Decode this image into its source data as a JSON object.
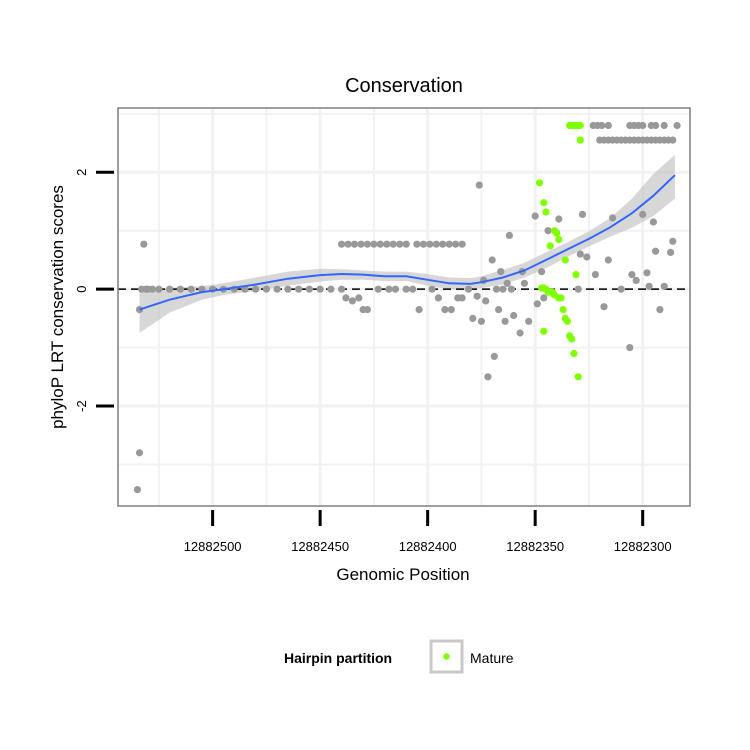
{
  "chart_data": {
    "type": "scatter",
    "title": "Conservation",
    "xlabel": "Genomic Position",
    "ylabel": "phyloP LRT conservation scores",
    "x_reversed": true,
    "xlim": [
      12882544,
      12882278
    ],
    "ylim": [
      -3.71,
      3.1
    ],
    "x_ticks": [
      12882500,
      12882450,
      12882400,
      12882350,
      12882300
    ],
    "x_tick_labels": [
      "12882500",
      "12882450",
      "12882400",
      "12882350",
      "12882300"
    ],
    "y_ticks": [
      -2,
      0,
      2
    ],
    "y_tick_labels": [
      "-2",
      "0",
      "2"
    ],
    "reference_line": {
      "y": 0,
      "style": "dashed"
    },
    "legend": {
      "title": "Hairpin partition",
      "entries": [
        {
          "label": "Mature",
          "color": "#7fff00"
        }
      ]
    },
    "colors": {
      "other": "#999999",
      "mature": "#7fff00",
      "smooth": "#3366ff",
      "band": "#bdbdbd",
      "panel_border": "#7f7f7f",
      "grid": "#f2f2f2"
    },
    "points_other": [
      [
        12882533,
        0
      ],
      [
        12882532,
        0.77
      ],
      [
        12882531,
        0
      ],
      [
        12882530,
        0
      ],
      [
        12882528,
        0
      ],
      [
        12882525,
        0
      ],
      [
        12882520,
        0
      ],
      [
        12882515,
        0
      ],
      [
        12882510,
        0
      ],
      [
        12882505,
        0
      ],
      [
        12882500,
        0
      ],
      [
        12882495,
        0
      ],
      [
        12882490,
        0
      ],
      [
        12882485,
        0
      ],
      [
        12882480,
        0
      ],
      [
        12882475,
        0
      ],
      [
        12882470,
        0
      ],
      [
        12882465,
        0
      ],
      [
        12882460,
        0
      ],
      [
        12882455,
        0
      ],
      [
        12882450,
        0
      ],
      [
        12882445,
        0
      ],
      [
        12882440,
        0
      ],
      [
        12882534,
        -0.35
      ],
      [
        12882534,
        -2.8
      ],
      [
        12882535,
        -3.43
      ],
      [
        12882440,
        0.77
      ],
      [
        12882437,
        0.77
      ],
      [
        12882434,
        0.77
      ],
      [
        12882431,
        0.77
      ],
      [
        12882428,
        0.77
      ],
      [
        12882425,
        0.77
      ],
      [
        12882422,
        0.77
      ],
      [
        12882419,
        0.77
      ],
      [
        12882416,
        0.77
      ],
      [
        12882413,
        0.77
      ],
      [
        12882410,
        0.77
      ],
      [
        12882405,
        0.77
      ],
      [
        12882402,
        0.77
      ],
      [
        12882399,
        0.77
      ],
      [
        12882396,
        0.77
      ],
      [
        12882393,
        0.77
      ],
      [
        12882390,
        0.77
      ],
      [
        12882387,
        0.77
      ],
      [
        12882384,
        0.77
      ],
      [
        12882438,
        -0.15
      ],
      [
        12882435,
        -0.2
      ],
      [
        12882432,
        -0.15
      ],
      [
        12882430,
        -0.35
      ],
      [
        12882428,
        -0.35
      ],
      [
        12882423,
        0
      ],
      [
        12882418,
        0
      ],
      [
        12882415,
        0
      ],
      [
        12882410,
        0
      ],
      [
        12882407,
        0
      ],
      [
        12882404,
        -0.35
      ],
      [
        12882398,
        0
      ],
      [
        12882395,
        -0.15
      ],
      [
        12882392,
        -0.35
      ],
      [
        12882389,
        -0.35
      ],
      [
        12882386,
        -0.15
      ],
      [
        12882384,
        -0.15
      ],
      [
        12882381,
        0
      ],
      [
        12882379,
        -0.5
      ],
      [
        12882377,
        -0.12
      ],
      [
        12882376,
        1.78
      ],
      [
        12882375,
        -0.55
      ],
      [
        12882374,
        0.15
      ],
      [
        12882373,
        -0.2
      ],
      [
        12882372,
        -1.5
      ],
      [
        12882370,
        0.5
      ],
      [
        12882369,
        -1.15
      ],
      [
        12882368,
        0
      ],
      [
        12882367,
        -0.35
      ],
      [
        12882366,
        0.3
      ],
      [
        12882365,
        0
      ],
      [
        12882364,
        -0.55
      ],
      [
        12882363,
        0.1
      ],
      [
        12882362,
        0.92
      ],
      [
        12882361,
        0
      ],
      [
        12882360,
        -0.45
      ],
      [
        12882357,
        -0.75
      ],
      [
        12882356,
        0.3
      ],
      [
        12882355,
        0.1
      ],
      [
        12882353,
        -0.55
      ],
      [
        12882350,
        1.25
      ],
      [
        12882349,
        -0.25
      ],
      [
        12882347,
        0.3
      ],
      [
        12882346,
        -0.15
      ],
      [
        12882344,
        1.0
      ],
      [
        12882339,
        1.2
      ],
      [
        12882329,
        0.6
      ],
      [
        12882326,
        0.55
      ],
      [
        12882330,
        0
      ],
      [
        12882328,
        1.28
      ],
      [
        12882322,
        0.25
      ],
      [
        12882318,
        -0.3
      ],
      [
        12882316,
        0.5
      ],
      [
        12882314,
        1.22
      ],
      [
        12882310,
        0
      ],
      [
        12882306,
        -1.0
      ],
      [
        12882305,
        0.25
      ],
      [
        12882303,
        0.15
      ],
      [
        12882300,
        1.28
      ],
      [
        12882298,
        0.28
      ],
      [
        12882297,
        0.05
      ],
      [
        12882295,
        1.15
      ],
      [
        12882294,
        0.65
      ],
      [
        12882292,
        -0.35
      ],
      [
        12882290,
        0.05
      ],
      [
        12882287,
        0.63
      ],
      [
        12882286,
        0.82
      ],
      [
        12882323,
        2.8
      ],
      [
        12882321,
        2.8
      ],
      [
        12882319,
        2.8
      ],
      [
        12882316,
        2.8
      ],
      [
        12882306,
        2.8
      ],
      [
        12882304,
        2.8
      ],
      [
        12882302,
        2.8
      ],
      [
        12882300,
        2.8
      ],
      [
        12882296,
        2.8
      ],
      [
        12882294,
        2.8
      ],
      [
        12882290,
        2.8
      ],
      [
        12882284,
        2.8
      ],
      [
        12882320,
        2.55
      ],
      [
        12882318,
        2.55
      ],
      [
        12882316,
        2.55
      ],
      [
        12882314,
        2.55
      ],
      [
        12882312,
        2.55
      ],
      [
        12882310,
        2.55
      ],
      [
        12882308,
        2.55
      ],
      [
        12882306,
        2.55
      ],
      [
        12882304,
        2.55
      ],
      [
        12882302,
        2.55
      ],
      [
        12882300,
        2.55
      ],
      [
        12882298,
        2.55
      ],
      [
        12882296,
        2.55
      ],
      [
        12882294,
        2.55
      ],
      [
        12882292,
        2.55
      ],
      [
        12882290,
        2.55
      ],
      [
        12882288,
        2.55
      ],
      [
        12882286,
        2.55
      ]
    ],
    "points_mature": [
      [
        12882348,
        1.82
      ],
      [
        12882346,
        1.48
      ],
      [
        12882345,
        1.32
      ],
      [
        12882343,
        0.74
      ],
      [
        12882341,
        1.0
      ],
      [
        12882340,
        0.96
      ],
      [
        12882339,
        0.85
      ],
      [
        12882336,
        0.5
      ],
      [
        12882331,
        0.25
      ],
      [
        12882347,
        0.02
      ],
      [
        12882346,
        0.02
      ],
      [
        12882345,
        0.0
      ],
      [
        12882344,
        -0.05
      ],
      [
        12882343,
        -0.05
      ],
      [
        12882342,
        -0.05
      ],
      [
        12882341,
        -0.1
      ],
      [
        12882339,
        -0.15
      ],
      [
        12882338,
        -0.15
      ],
      [
        12882337,
        -0.35
      ],
      [
        12882336,
        -0.5
      ],
      [
        12882335,
        -0.55
      ],
      [
        12882334,
        -0.8
      ],
      [
        12882333,
        -0.85
      ],
      [
        12882332,
        -1.1
      ],
      [
        12882346,
        -0.72
      ],
      [
        12882330,
        -1.5
      ],
      [
        12882329,
        2.55
      ],
      [
        12882334,
        2.8
      ],
      [
        12882333,
        2.8
      ],
      [
        12882332,
        2.8
      ],
      [
        12882331,
        2.8
      ],
      [
        12882330,
        2.8
      ],
      [
        12882329,
        2.8
      ]
    ],
    "smooth_curve": [
      [
        12882534,
        -0.35
      ],
      [
        12882520,
        -0.18
      ],
      [
        12882505,
        -0.05
      ],
      [
        12882495,
        0.0
      ],
      [
        12882480,
        0.08
      ],
      [
        12882465,
        0.18
      ],
      [
        12882450,
        0.24
      ],
      [
        12882440,
        0.26
      ],
      [
        12882430,
        0.25
      ],
      [
        12882420,
        0.22
      ],
      [
        12882410,
        0.22
      ],
      [
        12882400,
        0.16
      ],
      [
        12882390,
        0.1
      ],
      [
        12882380,
        0.09
      ],
      [
        12882375,
        0.12
      ],
      [
        12882365,
        0.2
      ],
      [
        12882355,
        0.32
      ],
      [
        12882345,
        0.5
      ],
      [
        12882335,
        0.68
      ],
      [
        12882325,
        0.86
      ],
      [
        12882315,
        1.06
      ],
      [
        12882305,
        1.3
      ],
      [
        12882295,
        1.6
      ],
      [
        12882285,
        1.95
      ]
    ],
    "confidence_band": {
      "upper": [
        [
          12882534,
          0.0
        ],
        [
          12882520,
          0.02
        ],
        [
          12882505,
          0.05
        ],
        [
          12882495,
          0.1
        ],
        [
          12882480,
          0.2
        ],
        [
          12882465,
          0.3
        ],
        [
          12882450,
          0.35
        ],
        [
          12882440,
          0.34
        ],
        [
          12882430,
          0.32
        ],
        [
          12882420,
          0.3
        ],
        [
          12882410,
          0.3
        ],
        [
          12882400,
          0.26
        ],
        [
          12882390,
          0.2
        ],
        [
          12882380,
          0.19
        ],
        [
          12882375,
          0.22
        ],
        [
          12882365,
          0.33
        ],
        [
          12882355,
          0.45
        ],
        [
          12882345,
          0.63
        ],
        [
          12882335,
          0.8
        ],
        [
          12882325,
          0.99
        ],
        [
          12882315,
          1.22
        ],
        [
          12882305,
          1.55
        ],
        [
          12882295,
          1.97
        ],
        [
          12882285,
          2.3
        ]
      ],
      "lower": [
        [
          12882534,
          -0.75
        ],
        [
          12882520,
          -0.4
        ],
        [
          12882505,
          -0.18
        ],
        [
          12882495,
          -0.1
        ],
        [
          12882480,
          -0.03
        ],
        [
          12882465,
          0.06
        ],
        [
          12882450,
          0.13
        ],
        [
          12882440,
          0.16
        ],
        [
          12882430,
          0.16
        ],
        [
          12882420,
          0.14
        ],
        [
          12882410,
          0.14
        ],
        [
          12882400,
          0.06
        ],
        [
          12882390,
          0.0
        ],
        [
          12882380,
          -0.01
        ],
        [
          12882375,
          0.02
        ],
        [
          12882365,
          0.08
        ],
        [
          12882355,
          0.2
        ],
        [
          12882345,
          0.36
        ],
        [
          12882335,
          0.55
        ],
        [
          12882325,
          0.73
        ],
        [
          12882315,
          0.9
        ],
        [
          12882305,
          1.05
        ],
        [
          12882295,
          1.25
        ],
        [
          12882285,
          1.55
        ]
      ]
    }
  }
}
